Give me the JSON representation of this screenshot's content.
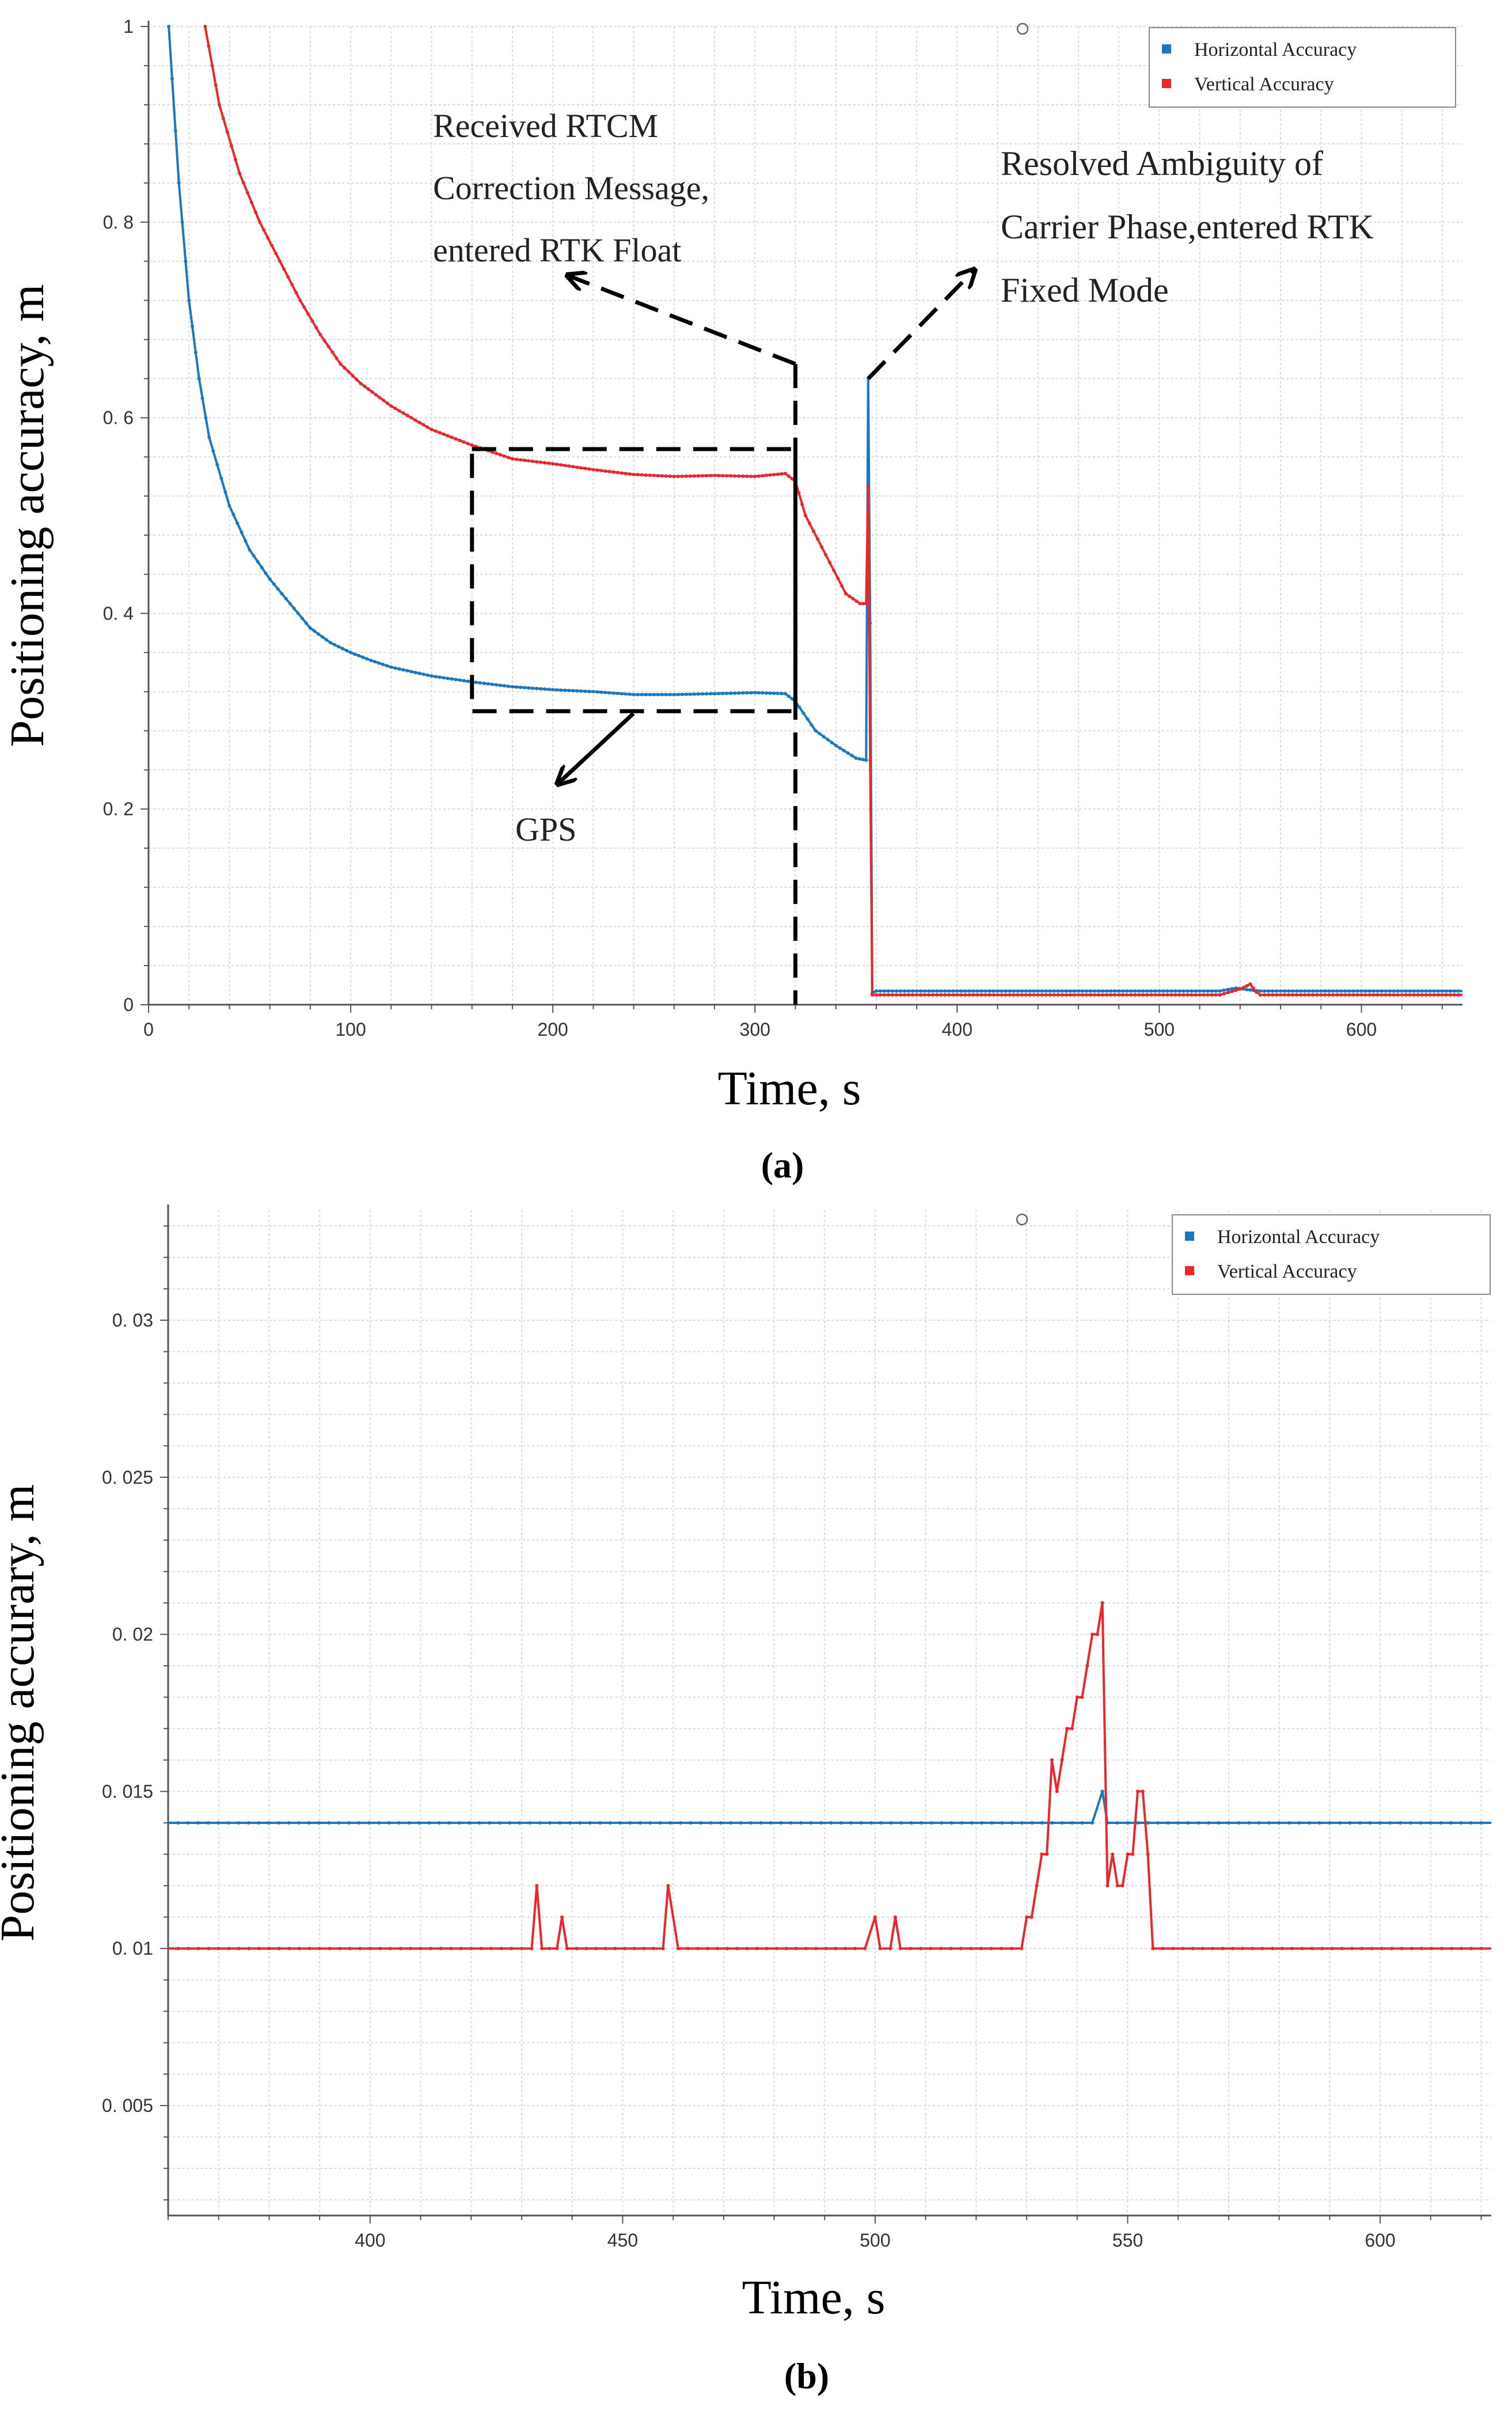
{
  "chart_data": [
    {
      "id": "a",
      "type": "line",
      "caption": "(a)",
      "xlabel": "Time, s",
      "ylabel": "Positioning accuracy, m",
      "xlim": [
        0,
        650
      ],
      "ylim": [
        0,
        1
      ],
      "xticks": [
        0,
        100,
        200,
        300,
        400,
        500,
        600
      ],
      "yticks": [
        0,
        0.2,
        0.4,
        0.6,
        0.8,
        1
      ],
      "ytick_labels": [
        "0",
        "0. 2",
        "0. 4",
        "0. 6",
        "0. 8",
        "1"
      ],
      "grid": true,
      "legend_position": "top-right",
      "series": [
        {
          "name": "Horizontal Accuracy",
          "color": "#1a78c2",
          "points": [
            [
              10,
              1.0
            ],
            [
              15,
              0.84
            ],
            [
              20,
              0.72
            ],
            [
              25,
              0.64
            ],
            [
              30,
              0.58
            ],
            [
              40,
              0.51
            ],
            [
              50,
              0.465
            ],
            [
              60,
              0.435
            ],
            [
              70,
              0.41
            ],
            [
              80,
              0.385
            ],
            [
              90,
              0.37
            ],
            [
              100,
              0.36
            ],
            [
              110,
              0.352
            ],
            [
              120,
              0.345
            ],
            [
              140,
              0.336
            ],
            [
              160,
              0.33
            ],
            [
              180,
              0.325
            ],
            [
              200,
              0.322
            ],
            [
              220,
              0.32
            ],
            [
              240,
              0.317
            ],
            [
              260,
              0.317
            ],
            [
              280,
              0.318
            ],
            [
              300,
              0.319
            ],
            [
              315,
              0.318
            ],
            [
              320,
              0.31
            ],
            [
              330,
              0.28
            ],
            [
              340,
              0.265
            ],
            [
              350,
              0.252
            ],
            [
              355,
              0.25
            ],
            [
              356,
              0.64
            ],
            [
              357,
              0.39
            ],
            [
              358,
              0.012
            ],
            [
              360,
              0.014
            ],
            [
              530,
              0.014
            ],
            [
              538,
              0.017
            ],
            [
              545,
              0.015
            ],
            [
              550,
              0.014
            ],
            [
              650,
              0.014
            ]
          ]
        },
        {
          "name": "Vertical Accuracy",
          "color": "#e8282b",
          "points": [
            [
              28,
              1.0
            ],
            [
              35,
              0.92
            ],
            [
              45,
              0.85
            ],
            [
              55,
              0.8
            ],
            [
              65,
              0.76
            ],
            [
              75,
              0.72
            ],
            [
              85,
              0.685
            ],
            [
              95,
              0.655
            ],
            [
              105,
              0.635
            ],
            [
              120,
              0.612
            ],
            [
              140,
              0.588
            ],
            [
              160,
              0.572
            ],
            [
              180,
              0.558
            ],
            [
              200,
              0.553
            ],
            [
              220,
              0.547
            ],
            [
              240,
              0.542
            ],
            [
              260,
              0.54
            ],
            [
              280,
              0.541
            ],
            [
              300,
              0.54
            ],
            [
              315,
              0.543
            ],
            [
              320,
              0.535
            ],
            [
              325,
              0.5
            ],
            [
              335,
              0.46
            ],
            [
              345,
              0.42
            ],
            [
              352,
              0.41
            ],
            [
              355,
              0.41
            ],
            [
              356,
              0.53
            ],
            [
              357,
              0.25
            ],
            [
              358,
              0.01
            ],
            [
              360,
              0.01
            ],
            [
              530,
              0.01
            ],
            [
              540,
              0.016
            ],
            [
              545,
              0.021
            ],
            [
              548,
              0.013
            ],
            [
              550,
              0.01
            ],
            [
              650,
              0.01
            ]
          ]
        }
      ],
      "annotations": [
        {
          "lines": [
            "Received RTCM",
            "Correction Message,",
            "entered RTK Float"
          ]
        },
        {
          "lines": [
            "Resolved Ambiguity of",
            "Carrier Phase,entered RTK",
            "Fixed Mode"
          ]
        },
        {
          "lines": [
            "GPS"
          ]
        }
      ]
    },
    {
      "id": "b",
      "type": "line",
      "caption": "(b)",
      "xlabel": "Time, s",
      "ylabel": "Positioning accurary, m",
      "xlim": [
        360,
        622
      ],
      "ylim": [
        0.0015,
        0.0335
      ],
      "xticks": [
        400,
        450,
        500,
        550,
        600
      ],
      "yticks": [
        0.005,
        0.01,
        0.015,
        0.02,
        0.025,
        0.03
      ],
      "ytick_labels": [
        "0. 005",
        "0. 01",
        "0. 015",
        "0. 02",
        "0. 025",
        "0. 03"
      ],
      "grid": true,
      "legend_position": "top-right",
      "series": [
        {
          "name": "Horizontal Accuracy",
          "color": "#1a78c2",
          "points": [
            [
              360,
              0.014
            ],
            [
              543,
              0.014
            ],
            [
              545,
              0.015
            ],
            [
              546,
              0.014
            ],
            [
              622,
              0.014
            ]
          ]
        },
        {
          "name": "Vertical Accuracy",
          "color": "#e8282b",
          "points": [
            [
              360,
              0.01
            ],
            [
              432,
              0.01
            ],
            [
              433,
              0.012
            ],
            [
              434,
              0.01
            ],
            [
              437,
              0.01
            ],
            [
              438,
              0.011
            ],
            [
              439,
              0.01
            ],
            [
              458,
              0.01
            ],
            [
              459,
              0.012
            ],
            [
              461,
              0.01
            ],
            [
              498,
              0.01
            ],
            [
              500,
              0.011
            ],
            [
              501,
              0.01
            ],
            [
              503,
              0.01
            ],
            [
              504,
              0.011
            ],
            [
              505,
              0.01
            ],
            [
              529,
              0.01
            ],
            [
              530,
              0.011
            ],
            [
              531,
              0.011
            ],
            [
              532,
              0.012
            ],
            [
              533,
              0.013
            ],
            [
              534,
              0.013
            ],
            [
              535,
              0.016
            ],
            [
              536,
              0.015
            ],
            [
              537,
              0.016
            ],
            [
              538,
              0.017
            ],
            [
              539,
              0.017
            ],
            [
              540,
              0.018
            ],
            [
              541,
              0.018
            ],
            [
              542,
              0.019
            ],
            [
              543,
              0.02
            ],
            [
              544,
              0.02
            ],
            [
              545,
              0.021
            ],
            [
              546,
              0.012
            ],
            [
              547,
              0.013
            ],
            [
              548,
              0.012
            ],
            [
              549,
              0.012
            ],
            [
              550,
              0.013
            ],
            [
              551,
              0.013
            ],
            [
              552,
              0.015
            ],
            [
              553,
              0.015
            ],
            [
              554,
              0.013
            ],
            [
              555,
              0.01
            ],
            [
              622,
              0.01
            ]
          ]
        }
      ]
    }
  ]
}
